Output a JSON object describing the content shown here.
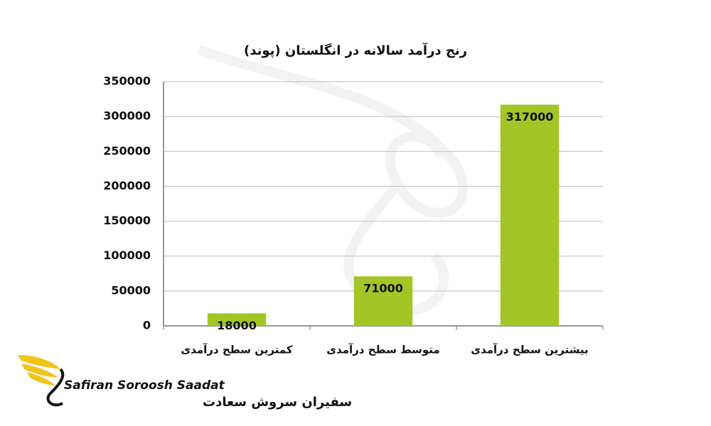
{
  "chart_data": {
    "type": "bar",
    "title": "رنج درآمد سالانه در انگلستان (پوند)",
    "categories": [
      "کمترین سطح درآمدی",
      "متوسط سطح درآمدی",
      "بیشترین سطح درآمدی"
    ],
    "values": [
      18000,
      71000,
      317000
    ],
    "color": "#a3c526",
    "ylim": [
      0,
      350000
    ],
    "yticks": [
      0,
      50000,
      100000,
      150000,
      200000,
      250000,
      300000,
      350000
    ],
    "grid": true
  },
  "logo": {
    "name_en": "Safiran Soroosh Saadat",
    "name_fa": "سفیران سروش سعادت"
  }
}
